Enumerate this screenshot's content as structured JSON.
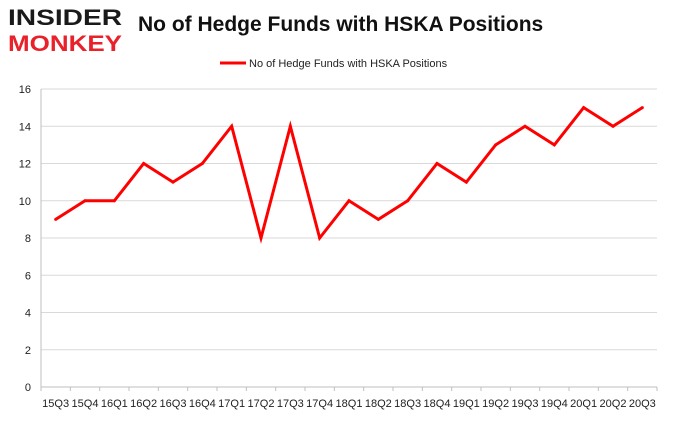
{
  "logo": {
    "line1": "INSIDER",
    "line2": "MONKEY"
  },
  "title": "No of Hedge Funds with HSKA Positions",
  "colors": {
    "series": "#ff0000",
    "grid": "#d9d9d9",
    "axis": "#bfbfbf",
    "text": "#222222",
    "logo_dark": "#1a1a1a",
    "logo_red": "#e8212a"
  },
  "chart_data": {
    "type": "line",
    "title": "No of Hedge Funds with HSKA Positions",
    "legend_position": "top-center",
    "grid": true,
    "ylim": [
      0,
      16
    ],
    "yticks": [
      0,
      2,
      4,
      6,
      8,
      10,
      12,
      14,
      16
    ],
    "categories": [
      "15Q3",
      "15Q4",
      "16Q1",
      "16Q2",
      "16Q3",
      "16Q4",
      "17Q1",
      "17Q2",
      "17Q3",
      "17Q4",
      "18Q1",
      "18Q2",
      "18Q3",
      "18Q4",
      "19Q1",
      "19Q2",
      "19Q3",
      "19Q4",
      "20Q1",
      "20Q2",
      "20Q3"
    ],
    "series": [
      {
        "name": "No of Hedge Funds with HSKA Positions",
        "values": [
          9,
          10,
          10,
          12,
          11,
          12,
          14,
          8,
          14,
          8,
          10,
          9,
          10,
          12,
          11,
          13,
          14,
          13,
          15,
          14,
          15
        ]
      }
    ]
  }
}
